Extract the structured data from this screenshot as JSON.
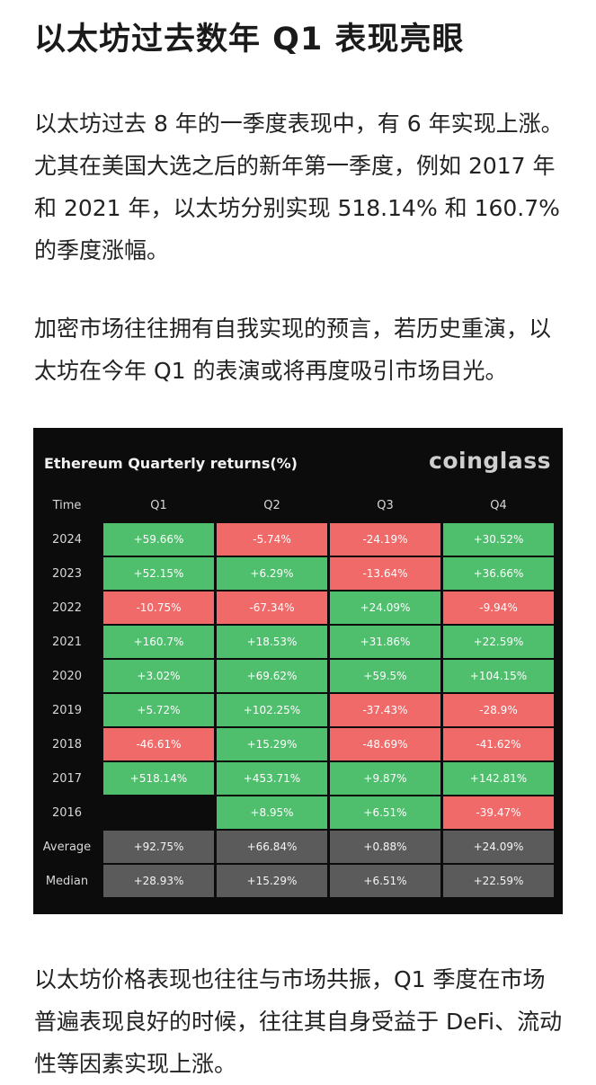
{
  "article": {
    "title": "以太坊过去数年 Q1 表现亮眼",
    "paragraph1": "以太坊过去 8 年的一季度表现中，有 6 年实现上涨。尤其在美国大选之后的新年第一季度，例如 2017 年和 2021 年，以太坊分别实现 518.14% 和 160.7% 的季度涨幅。",
    "paragraph2": "加密市场往往拥有自我实现的预言，若历史重演，以太坊在今年 Q1 的表演或将再度吸引市场目光。",
    "paragraph3": "以太坊价格表现也往往与市场共振，Q1 季度在市场普遍表现良好的时候，往往其自身受益于 DeFi、流动性等因素实现上涨。"
  },
  "chart_data": {
    "type": "table",
    "title": "Ethereum Quarterly returns(%)",
    "brand": "coinglass",
    "header_label": "Time",
    "columns": [
      "Q1",
      "Q2",
      "Q3",
      "Q4"
    ],
    "rows": [
      {
        "label": "2024",
        "kind": "year",
        "values": [
          "+59.66%",
          "-5.74%",
          "-24.19%",
          "+30.52%"
        ]
      },
      {
        "label": "2023",
        "kind": "year",
        "values": [
          "+52.15%",
          "+6.29%",
          "-13.64%",
          "+36.66%"
        ]
      },
      {
        "label": "2022",
        "kind": "year",
        "values": [
          "-10.75%",
          "-67.34%",
          "+24.09%",
          "-9.94%"
        ]
      },
      {
        "label": "2021",
        "kind": "year",
        "values": [
          "+160.7%",
          "+18.53%",
          "+31.86%",
          "+22.59%"
        ]
      },
      {
        "label": "2020",
        "kind": "year",
        "values": [
          "+3.02%",
          "+69.62%",
          "+59.5%",
          "+104.15%"
        ]
      },
      {
        "label": "2019",
        "kind": "year",
        "values": [
          "+5.72%",
          "+102.25%",
          "-37.43%",
          "-28.9%"
        ]
      },
      {
        "label": "2018",
        "kind": "year",
        "values": [
          "-46.61%",
          "+15.29%",
          "-48.69%",
          "-41.62%"
        ]
      },
      {
        "label": "2017",
        "kind": "year",
        "values": [
          "+518.14%",
          "+453.71%",
          "+9.87%",
          "+142.81%"
        ]
      },
      {
        "label": "2016",
        "kind": "year",
        "values": [
          "",
          "+8.95%",
          "+6.51%",
          "-39.47%"
        ]
      },
      {
        "label": "Average",
        "kind": "summary",
        "values": [
          "+92.75%",
          "+66.84%",
          "+0.88%",
          "+24.09%"
        ]
      },
      {
        "label": "Median",
        "kind": "summary",
        "values": [
          "+28.93%",
          "+15.29%",
          "+6.51%",
          "+22.59%"
        ]
      }
    ],
    "colors": {
      "positive": "#4fbf6e",
      "negative": "#f06a6a",
      "summary": "#5b5b5b",
      "background": "#0c0c0c"
    }
  }
}
